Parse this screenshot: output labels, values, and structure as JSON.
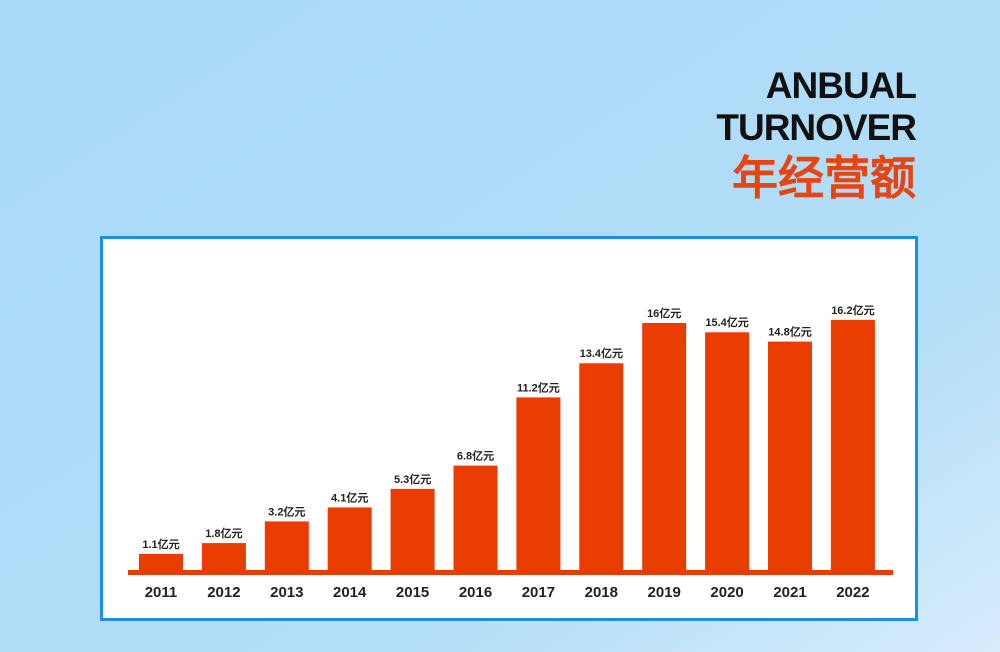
{
  "chart_data": {
    "type": "bar",
    "title": [
      "ANBUAL",
      "TURNOVER",
      "年经营额"
    ],
    "categories": [
      "2011",
      "2012",
      "2013",
      "2014",
      "2015",
      "2016",
      "2017",
      "2018",
      "2019",
      "2020",
      "2021",
      "2022"
    ],
    "values": [
      1.1,
      1.8,
      3.2,
      4.1,
      5.3,
      6.8,
      11.2,
      13.4,
      16,
      15.4,
      14.8,
      16.2
    ],
    "value_labels": [
      "1.1亿元",
      "1.8亿元",
      "3.2亿元",
      "4.1亿元",
      "5.3亿元",
      "6.8亿元",
      "11.2亿元",
      "13.4亿元",
      "16亿元",
      "15.4亿元",
      "14.8亿元",
      "16.2亿元"
    ],
    "color": "#e83c00"
  }
}
